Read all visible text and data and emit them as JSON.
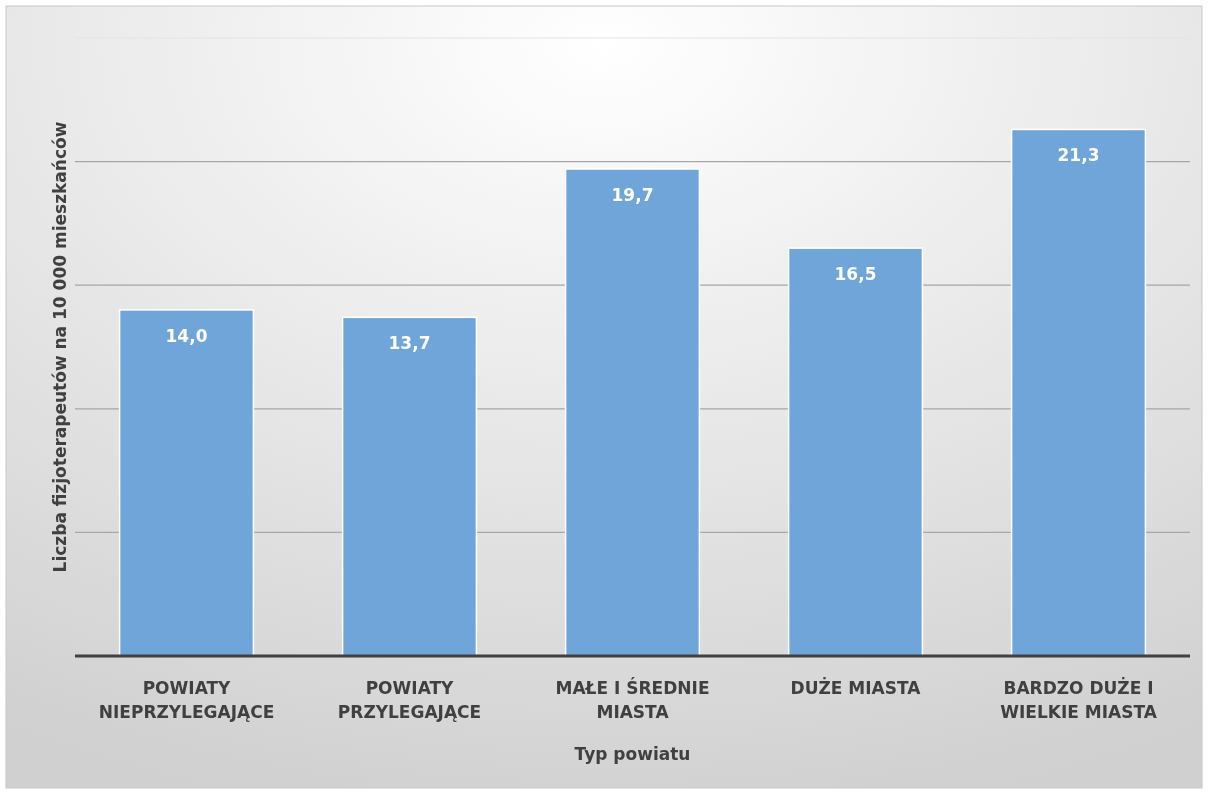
{
  "chart_data": {
    "type": "bar",
    "xlabel": "Typ powiatu",
    "ylabel": "Liczba fizjoterapeutów na 10 000 mieszkańców",
    "categories": [
      "POWIATY NIEPRZYLEGAJĄCE",
      "POWIATY PRZYLEGAJĄCE",
      "MAŁE I ŚREDNIE MIASTA",
      "DUŻE MIASTA",
      "BARDZO DUŻE I WIELKIE MIASTA"
    ],
    "values": [
      14.0,
      13.7,
      19.7,
      16.5,
      21.3
    ],
    "color": "#6fa5d8",
    "value_labels": [
      "14,0",
      "13,7",
      "19,7",
      "16,5",
      "21,3"
    ],
    "grid": "y",
    "tick_labels": "x"
  }
}
